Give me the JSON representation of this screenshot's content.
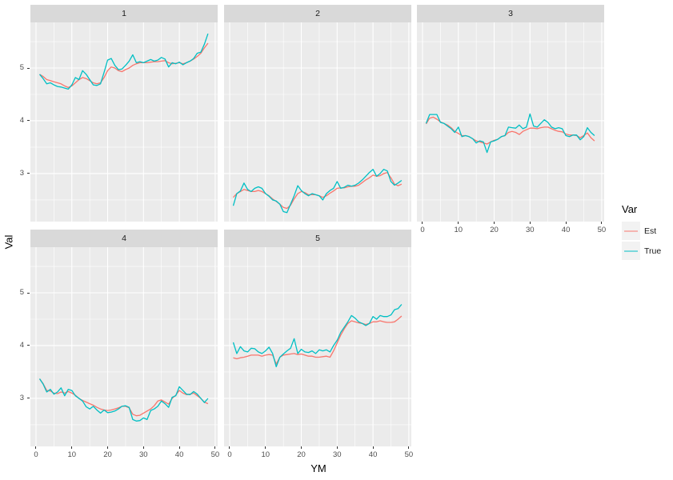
{
  "figure": {
    "y_axis_title": "Val",
    "x_axis_title": "YM",
    "colors": {
      "est_line": "#F8766D",
      "true_line": "#00BFC4",
      "panel_background": "#EBEBEB",
      "strip_background": "#D9D9D9",
      "grid_line": "#FFFFFF",
      "legend_key_background": "#F2F2F2",
      "tick_text": "#4D4D4D"
    }
  },
  "legend": {
    "title": "Var",
    "entries": [
      {
        "label": "Est",
        "color": "#F8766D"
      },
      {
        "label": "True",
        "color": "#00BFC4"
      }
    ]
  },
  "chart_data": {
    "type": "line",
    "title": "",
    "xlabel": "YM",
    "ylabel": "Val",
    "legend_title": "Var",
    "legend_position": "right",
    "grid": true,
    "x_ticks": [
      0,
      10,
      20,
      30,
      40,
      50
    ],
    "x_minor_ticks": [
      5,
      15,
      25,
      35,
      45
    ],
    "y_ticks": [
      3,
      4,
      5
    ],
    "y_minor_ticks": [
      2.5,
      3.5,
      4.5,
      5.5
    ],
    "x_domain": [
      -1.56,
      50.7
    ],
    "y_domain": [
      2.09,
      5.864
    ],
    "x": [
      1,
      2,
      3,
      4,
      5,
      6,
      7,
      8,
      9,
      10,
      11,
      12,
      13,
      14,
      15,
      16,
      17,
      18,
      19,
      20,
      21,
      22,
      23,
      24,
      25,
      26,
      27,
      28,
      29,
      30,
      31,
      32,
      33,
      34,
      35,
      36,
      37,
      38,
      39,
      40,
      41,
      42,
      43,
      44,
      45,
      46,
      47,
      48
    ],
    "facets": [
      {
        "label": "1",
        "series": [
          {
            "name": "Est",
            "values": [
              4.88,
              4.84,
              4.78,
              4.76,
              4.74,
              4.72,
              4.7,
              4.66,
              4.63,
              4.66,
              4.72,
              4.78,
              4.82,
              4.8,
              4.76,
              4.72,
              4.7,
              4.72,
              4.82,
              4.95,
              5.02,
              5.0,
              4.95,
              4.93,
              4.97,
              5.0,
              5.05,
              5.08,
              5.1,
              5.1,
              5.1,
              5.11,
              5.12,
              5.12,
              5.13,
              5.14,
              5.1,
              5.08,
              5.09,
              5.1,
              5.08,
              5.1,
              5.13,
              5.17,
              5.22,
              5.28,
              5.38,
              5.47
            ]
          },
          {
            "name": "True",
            "values": [
              4.88,
              4.8,
              4.7,
              4.72,
              4.68,
              4.65,
              4.64,
              4.62,
              4.6,
              4.68,
              4.82,
              4.78,
              4.95,
              4.88,
              4.78,
              4.68,
              4.67,
              4.7,
              4.92,
              5.15,
              5.18,
              5.05,
              4.97,
              4.98,
              5.05,
              5.13,
              5.25,
              5.1,
              5.12,
              5.1,
              5.13,
              5.16,
              5.13,
              5.15,
              5.2,
              5.17,
              5.02,
              5.1,
              5.08,
              5.11,
              5.06,
              5.1,
              5.13,
              5.18,
              5.28,
              5.3,
              5.45,
              5.65
            ]
          }
        ]
      },
      {
        "label": "2",
        "series": [
          {
            "name": "Est",
            "values": [
              2.55,
              2.62,
              2.66,
              2.7,
              2.68,
              2.66,
              2.66,
              2.68,
              2.66,
              2.62,
              2.58,
              2.52,
              2.47,
              2.42,
              2.36,
              2.34,
              2.4,
              2.52,
              2.62,
              2.66,
              2.64,
              2.6,
              2.6,
              2.6,
              2.58,
              2.55,
              2.58,
              2.63,
              2.67,
              2.72,
              2.73,
              2.73,
              2.75,
              2.76,
              2.76,
              2.78,
              2.83,
              2.88,
              2.92,
              2.97,
              2.95,
              2.96,
              3.0,
              3.02,
              2.92,
              2.8,
              2.77,
              2.8
            ]
          },
          {
            "name": "True",
            "values": [
              2.39,
              2.62,
              2.67,
              2.82,
              2.7,
              2.66,
              2.72,
              2.75,
              2.72,
              2.62,
              2.57,
              2.5,
              2.48,
              2.42,
              2.28,
              2.26,
              2.42,
              2.58,
              2.77,
              2.68,
              2.62,
              2.58,
              2.62,
              2.6,
              2.58,
              2.5,
              2.62,
              2.68,
              2.72,
              2.85,
              2.72,
              2.74,
              2.78,
              2.76,
              2.78,
              2.82,
              2.88,
              2.95,
              3.02,
              3.08,
              2.95,
              3.0,
              3.08,
              3.05,
              2.85,
              2.78,
              2.82,
              2.87
            ]
          }
        ]
      },
      {
        "label": "3",
        "series": [
          {
            "name": "Est",
            "values": [
              3.94,
              4.05,
              4.07,
              4.03,
              3.98,
              3.95,
              3.92,
              3.87,
              3.8,
              3.76,
              3.72,
              3.72,
              3.7,
              3.66,
              3.62,
              3.6,
              3.58,
              3.56,
              3.6,
              3.63,
              3.65,
              3.7,
              3.72,
              3.78,
              3.8,
              3.78,
              3.74,
              3.8,
              3.83,
              3.86,
              3.86,
              3.85,
              3.87,
              3.88,
              3.88,
              3.85,
              3.82,
              3.8,
              3.79,
              3.75,
              3.73,
              3.73,
              3.72,
              3.68,
              3.72,
              3.77,
              3.68,
              3.62
            ]
          },
          {
            "name": "True",
            "values": [
              3.95,
              4.12,
              4.12,
              4.12,
              3.97,
              3.95,
              3.9,
              3.85,
              3.78,
              3.88,
              3.7,
              3.72,
              3.7,
              3.66,
              3.58,
              3.62,
              3.6,
              3.4,
              3.6,
              3.62,
              3.65,
              3.7,
              3.72,
              3.88,
              3.87,
              3.86,
              3.92,
              3.85,
              3.88,
              4.13,
              3.9,
              3.88,
              3.95,
              4.02,
              3.97,
              3.88,
              3.85,
              3.87,
              3.85,
              3.72,
              3.7,
              3.73,
              3.73,
              3.64,
              3.7,
              3.87,
              3.78,
              3.72
            ]
          }
        ]
      },
      {
        "label": "4",
        "series": [
          {
            "name": "Est",
            "values": [
              3.37,
              3.28,
              3.15,
              3.14,
              3.1,
              3.09,
              3.12,
              3.1,
              3.13,
              3.1,
              3.06,
              3.0,
              2.96,
              2.93,
              2.9,
              2.87,
              2.83,
              2.8,
              2.78,
              2.77,
              2.78,
              2.8,
              2.82,
              2.85,
              2.85,
              2.82,
              2.7,
              2.67,
              2.68,
              2.72,
              2.76,
              2.8,
              2.86,
              2.95,
              2.97,
              2.93,
              2.89,
              3.0,
              3.06,
              3.15,
              3.1,
              3.07,
              3.08,
              3.1,
              3.05,
              3.0,
              2.93,
              2.9
            ]
          },
          {
            "name": "True",
            "values": [
              3.37,
              3.27,
              3.12,
              3.17,
              3.08,
              3.12,
              3.2,
              3.05,
              3.17,
              3.15,
              3.05,
              3.0,
              2.95,
              2.84,
              2.8,
              2.85,
              2.78,
              2.72,
              2.78,
              2.73,
              2.74,
              2.76,
              2.8,
              2.85,
              2.86,
              2.83,
              2.6,
              2.57,
              2.58,
              2.63,
              2.6,
              2.77,
              2.8,
              2.85,
              2.95,
              2.9,
              2.83,
              3.02,
              3.05,
              3.22,
              3.15,
              3.08,
              3.07,
              3.13,
              3.08,
              3.0,
              2.92,
              3.0
            ]
          }
        ]
      },
      {
        "label": "5",
        "series": [
          {
            "name": "Est",
            "values": [
              3.77,
              3.75,
              3.77,
              3.78,
              3.8,
              3.82,
              3.82,
              3.82,
              3.8,
              3.82,
              3.83,
              3.82,
              3.65,
              3.78,
              3.82,
              3.83,
              3.84,
              3.85,
              3.83,
              3.84,
              3.82,
              3.8,
              3.8,
              3.78,
              3.78,
              3.79,
              3.8,
              3.78,
              3.9,
              4.05,
              4.2,
              4.32,
              4.42,
              4.47,
              4.45,
              4.43,
              4.42,
              4.4,
              4.42,
              4.45,
              4.45,
              4.47,
              4.45,
              4.44,
              4.44,
              4.45,
              4.5,
              4.56
            ]
          },
          {
            "name": "True",
            "values": [
              4.06,
              3.85,
              3.98,
              3.9,
              3.88,
              3.95,
              3.94,
              3.88,
              3.85,
              3.9,
              3.97,
              3.85,
              3.6,
              3.78,
              3.84,
              3.9,
              3.95,
              4.13,
              3.85,
              3.93,
              3.88,
              3.87,
              3.9,
              3.85,
              3.92,
              3.9,
              3.92,
              3.88,
              4.0,
              4.1,
              4.25,
              4.35,
              4.45,
              4.57,
              4.52,
              4.45,
              4.42,
              4.38,
              4.42,
              4.55,
              4.5,
              4.57,
              4.55,
              4.55,
              4.58,
              4.68,
              4.7,
              4.78
            ]
          }
        ]
      }
    ]
  }
}
